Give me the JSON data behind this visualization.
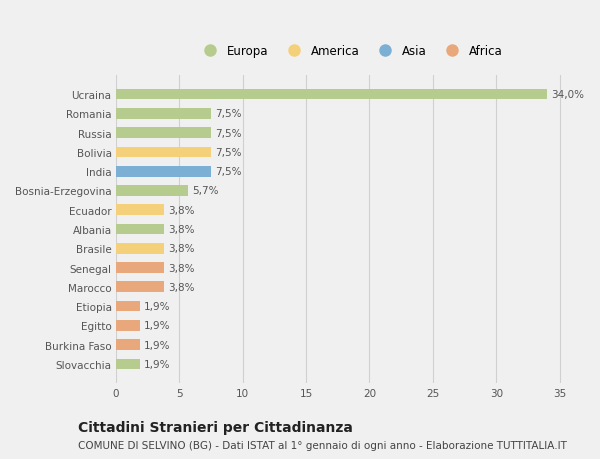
{
  "categories": [
    "Ucraina",
    "Romania",
    "Russia",
    "Bolivia",
    "India",
    "Bosnia-Erzegovina",
    "Ecuador",
    "Albania",
    "Brasile",
    "Senegal",
    "Marocco",
    "Etiopia",
    "Egitto",
    "Burkina Faso",
    "Slovacchia"
  ],
  "values": [
    34.0,
    7.5,
    7.5,
    7.5,
    7.5,
    5.7,
    3.8,
    3.8,
    3.8,
    3.8,
    3.8,
    1.9,
    1.9,
    1.9,
    1.9
  ],
  "bar_colors": [
    "#b5cc8e",
    "#b5cc8e",
    "#b5cc8e",
    "#f5d07a",
    "#7bafd4",
    "#b5cc8e",
    "#f5d07a",
    "#b5cc8e",
    "#f5d07a",
    "#e8a87c",
    "#e8a87c",
    "#e8a87c",
    "#e8a87c",
    "#e8a87c",
    "#b5cc8e"
  ],
  "labels": [
    "34,0%",
    "7,5%",
    "7,5%",
    "7,5%",
    "7,5%",
    "5,7%",
    "3,8%",
    "3,8%",
    "3,8%",
    "3,8%",
    "3,8%",
    "1,9%",
    "1,9%",
    "1,9%",
    "1,9%"
  ],
  "legend_labels": [
    "Europa",
    "America",
    "Asia",
    "Africa"
  ],
  "legend_colors": [
    "#b5cc8e",
    "#f5d07a",
    "#7bafd4",
    "#e8a87c"
  ],
  "title": "Cittadini Stranieri per Cittadinanza",
  "subtitle": "COMUNE DI SELVINO (BG) - Dati ISTAT al 1° gennaio di ogni anno - Elaborazione TUTTITALIA.IT",
  "xlim": [
    0,
    37
  ],
  "xticks": [
    0,
    5,
    10,
    15,
    20,
    25,
    30,
    35
  ],
  "background_color": "#f0f0f0",
  "grid_color": "#d0d0d0",
  "bar_height": 0.55,
  "title_fontsize": 10,
  "subtitle_fontsize": 7.5,
  "label_fontsize": 7.5,
  "tick_fontsize": 7.5,
  "legend_fontsize": 8.5
}
